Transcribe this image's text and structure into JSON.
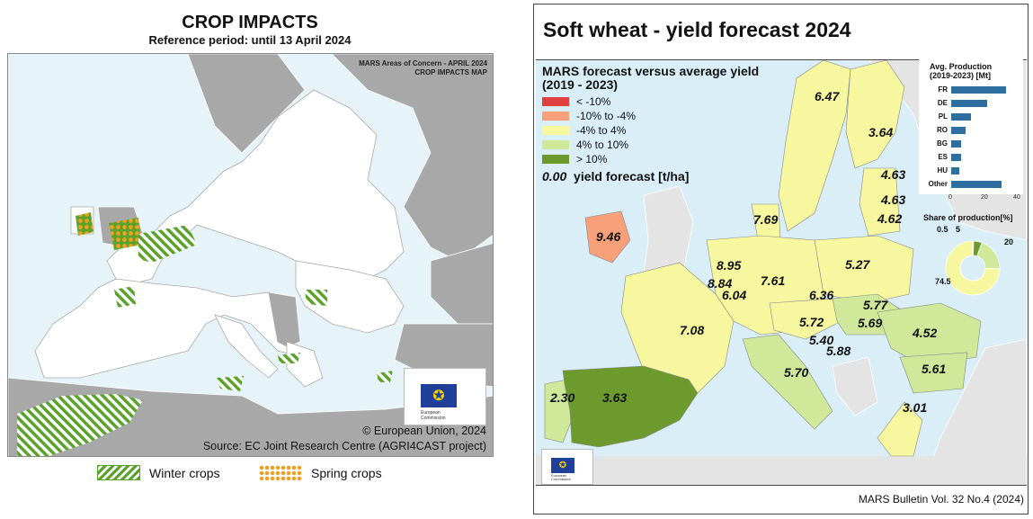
{
  "left": {
    "title": "CROP IMPACTS",
    "subtitle": "Reference period: until 13 April 2024",
    "map_caption_1": "MARS Areas of Concern - APRIL 2024",
    "map_caption_2": "CROP IMPACTS MAP",
    "copyright": "© European Union, 2024",
    "source": "Source: EC Joint Research Centre (AGRI4CAST project)",
    "logo_text_1": "European",
    "logo_text_2": "Commission",
    "legend": [
      {
        "label": "Winter crops",
        "pattern": "green-hatch"
      },
      {
        "label": "Spring crops",
        "pattern": "orange-dots"
      }
    ],
    "colors": {
      "sea": "#e6f3f8",
      "eu_land": "#ffffff",
      "non_eu": "#a8a8a8",
      "hatch": "#5aa32a",
      "dots": "#f0a020"
    }
  },
  "right": {
    "title": "Soft wheat - yield forecast 2024",
    "footer": "MARS Bulletin Vol. 32 No.4 (2024)",
    "legend_title_1": "MARS forecast versus average yield",
    "legend_title_2": "(2019 - 2023)",
    "legend": [
      {
        "label": "< -10%",
        "color": "#e04040"
      },
      {
        "label": "-10% to -4%",
        "color": "#f7a07a"
      },
      {
        "label": "-4% to 4%",
        "color": "#f7f7a0"
      },
      {
        "label": "4% to 10%",
        "color": "#cfe89a"
      },
      {
        "label": "> 10%",
        "color": "#6d9a2c"
      }
    ],
    "yield_note_value": "0.00",
    "yield_note_label": "yield forecast [t/ha]",
    "logo_text_1": "European",
    "logo_text_2": "Commission",
    "yields": [
      {
        "region": "SE",
        "value": "6.47"
      },
      {
        "region": "FI",
        "value": "3.64"
      },
      {
        "region": "EE",
        "value": "4.63"
      },
      {
        "region": "LV",
        "value": "4.63"
      },
      {
        "region": "LT",
        "value": "4.62"
      },
      {
        "region": "DK",
        "value": "7.69"
      },
      {
        "region": "IE",
        "value": "9.46"
      },
      {
        "region": "NL",
        "value": "8.95"
      },
      {
        "region": "BE",
        "value": "8.84"
      },
      {
        "region": "LU",
        "value": "6.04"
      },
      {
        "region": "DE",
        "value": "7.61"
      },
      {
        "region": "PL",
        "value": "5.27"
      },
      {
        "region": "CZ",
        "value": "6.36"
      },
      {
        "region": "SK",
        "value": "5.77"
      },
      {
        "region": "HU",
        "value": "5.69"
      },
      {
        "region": "AT",
        "value": "5.72"
      },
      {
        "region": "SI",
        "value": "5.40"
      },
      {
        "region": "HR",
        "value": "5.88"
      },
      {
        "region": "FR",
        "value": "7.08"
      },
      {
        "region": "RO",
        "value": "4.52"
      },
      {
        "region": "BG",
        "value": "5.61"
      },
      {
        "region": "IT",
        "value": "5.70"
      },
      {
        "region": "PT",
        "value": "2.30"
      },
      {
        "region": "ES",
        "value": "3.63"
      },
      {
        "region": "GR",
        "value": "3.01"
      }
    ],
    "production_chart": {
      "title_1": "Avg. Production",
      "title_2": "(2019-2023) [Mt]",
      "ticks": [
        "0",
        "20",
        "40"
      ],
      "xlim": [
        0,
        40
      ],
      "categories": [
        "FR",
        "DE",
        "PL",
        "RO",
        "BG",
        "ES",
        "HU",
        "Other"
      ],
      "values": [
        34,
        22,
        12,
        9,
        6,
        6,
        5,
        31
      ]
    },
    "share_chart": {
      "title": "Share of production[%]",
      "labels": [
        "0.5",
        "5",
        "20",
        "74.5"
      ],
      "values": [
        0.5,
        5,
        20,
        74.5
      ],
      "colors": [
        "#e04040",
        "#6d9a2c",
        "#cfe89a",
        "#f7f7a0"
      ]
    }
  }
}
